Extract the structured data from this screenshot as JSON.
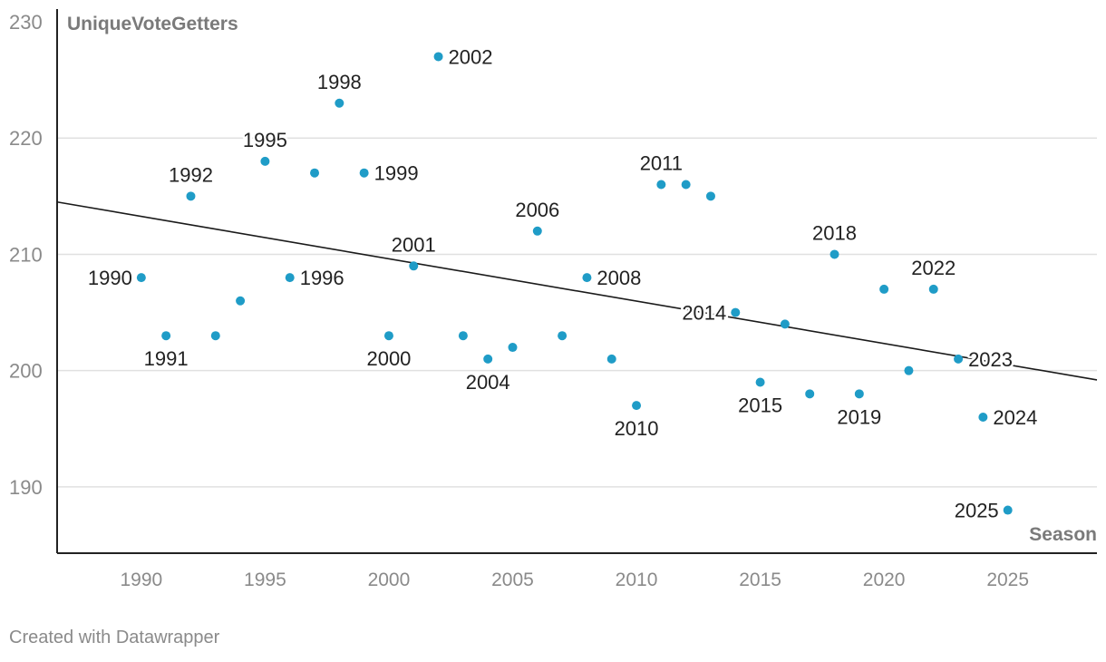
{
  "chart_data": {
    "type": "scatter",
    "title": "",
    "xlabel": "Season",
    "ylabel": "UniqueVoteGetters",
    "xlim": [
      1986.6,
      2028.6
    ],
    "ylim": [
      184.3,
      230
    ],
    "xticks": [
      1990,
      1995,
      2000,
      2005,
      2010,
      2015,
      2020,
      2025
    ],
    "yticks": [
      190,
      200,
      210,
      220,
      230
    ],
    "grid": "horizontal",
    "trendline": {
      "x": [
        1986.6,
        2028.6
      ],
      "y": [
        214.5,
        199.2
      ]
    },
    "colors": {
      "point": "#1f9cc7",
      "trend": "#1a1a1a",
      "grid": "#e0e0e0",
      "axis": "#222222",
      "tick": "#8a8a8a",
      "label": "#222222"
    },
    "points": [
      {
        "x": 1990,
        "y": 208,
        "label": "1990",
        "pos": "left"
      },
      {
        "x": 1991,
        "y": 203,
        "label": "1991",
        "pos": "below"
      },
      {
        "x": 1992,
        "y": 215,
        "label": "1992",
        "pos": "above"
      },
      {
        "x": 1993,
        "y": 203
      },
      {
        "x": 1994,
        "y": 206
      },
      {
        "x": 1995,
        "y": 218,
        "label": "1995",
        "pos": "above"
      },
      {
        "x": 1996,
        "y": 208,
        "label": "1996",
        "pos": "right"
      },
      {
        "x": 1997,
        "y": 217
      },
      {
        "x": 1998,
        "y": 223,
        "label": "1998",
        "pos": "above"
      },
      {
        "x": 1999,
        "y": 217,
        "label": "1999",
        "pos": "right"
      },
      {
        "x": 2000,
        "y": 203,
        "label": "2000",
        "pos": "below"
      },
      {
        "x": 2001,
        "y": 209,
        "label": "2001",
        "pos": "above"
      },
      {
        "x": 2002,
        "y": 227,
        "label": "2002",
        "pos": "right"
      },
      {
        "x": 2003,
        "y": 203
      },
      {
        "x": 2004,
        "y": 201,
        "label": "2004",
        "pos": "below"
      },
      {
        "x": 2005,
        "y": 202
      },
      {
        "x": 2006,
        "y": 212,
        "label": "2006",
        "pos": "above"
      },
      {
        "x": 2007,
        "y": 203
      },
      {
        "x": 2008,
        "y": 208,
        "label": "2008",
        "pos": "right"
      },
      {
        "x": 2009,
        "y": 201
      },
      {
        "x": 2010,
        "y": 197,
        "label": "2010",
        "pos": "below"
      },
      {
        "x": 2011,
        "y": 216,
        "label": "2011",
        "pos": "above"
      },
      {
        "x": 2012,
        "y": 216
      },
      {
        "x": 2013,
        "y": 215
      },
      {
        "x": 2014,
        "y": 205,
        "label": "2014",
        "pos": "left"
      },
      {
        "x": 2015,
        "y": 199,
        "label": "2015",
        "pos": "below"
      },
      {
        "x": 2016,
        "y": 204
      },
      {
        "x": 2017,
        "y": 198
      },
      {
        "x": 2018,
        "y": 210,
        "label": "2018",
        "pos": "above"
      },
      {
        "x": 2019,
        "y": 198,
        "label": "2019",
        "pos": "below"
      },
      {
        "x": 2020,
        "y": 207
      },
      {
        "x": 2021,
        "y": 200
      },
      {
        "x": 2022,
        "y": 207,
        "label": "2022",
        "pos": "above"
      },
      {
        "x": 2023,
        "y": 201,
        "label": "2023",
        "pos": "right"
      },
      {
        "x": 2024,
        "y": 196,
        "label": "2024",
        "pos": "right"
      },
      {
        "x": 2025,
        "y": 188,
        "label": "2025",
        "pos": "left"
      }
    ]
  },
  "footer": {
    "credit": "Created with Datawrapper"
  }
}
